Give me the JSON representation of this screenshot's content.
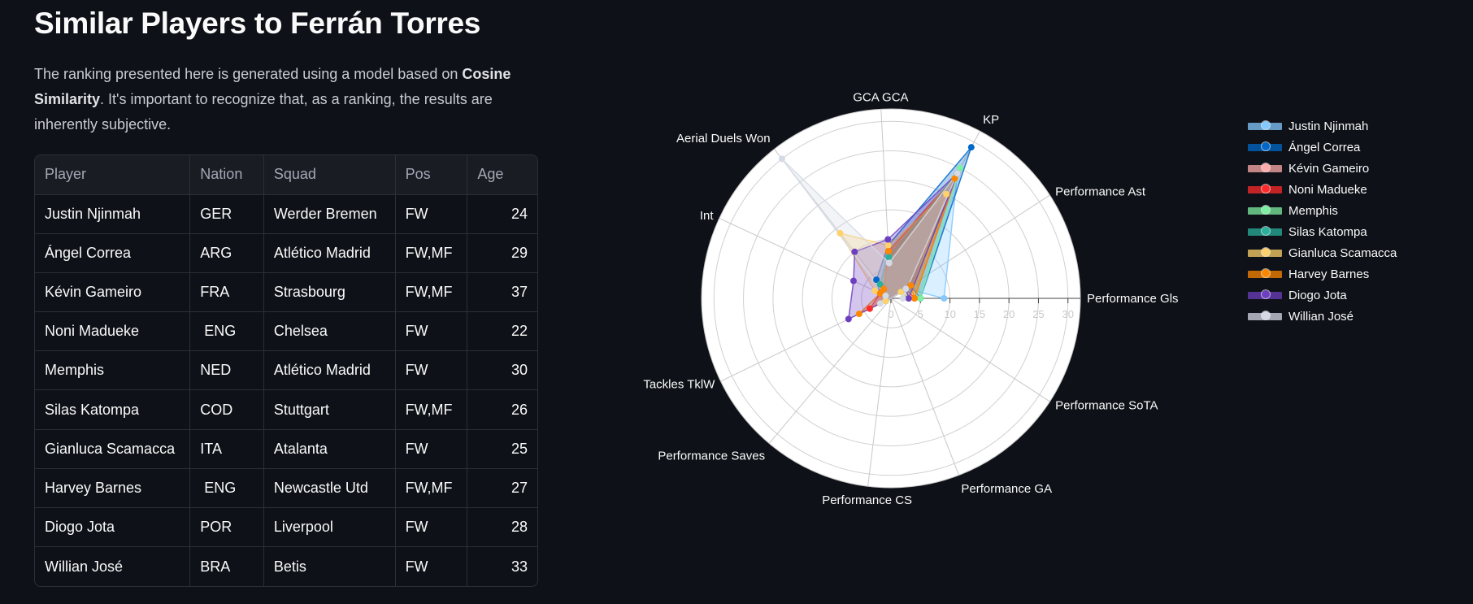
{
  "page": {
    "title": "Similar Players to Ferrán Torres",
    "intro_before": "The ranking presented here is generated using a model based on ",
    "intro_bold": "Cosine Similarity",
    "intro_after": ". It's important to recognize that, as a ranking, the results are inherently subjective."
  },
  "table": {
    "columns": [
      "Player",
      "Nation",
      "Squad",
      "Pos",
      "Age"
    ],
    "rows": [
      [
        "Justin Njinmah",
        "GER",
        "Werder Bremen",
        "FW",
        "24"
      ],
      [
        "Ángel Correa",
        "ARG",
        "Atlético Madrid",
        "FW,MF",
        "29"
      ],
      [
        "Kévin Gameiro",
        "FRA",
        "Strasbourg",
        "FW,MF",
        "37"
      ],
      [
        "Noni Madueke",
        " ENG",
        "Chelsea",
        "FW",
        "22"
      ],
      [
        "Memphis",
        "NED",
        "Atlético Madrid",
        "FW",
        "30"
      ],
      [
        "Silas Katompa",
        "COD",
        "Stuttgart",
        "FW,MF",
        "26"
      ],
      [
        "Gianluca Scamacca",
        "ITA",
        "Atalanta",
        "FW",
        "25"
      ],
      [
        "Harvey Barnes",
        " ENG",
        "Newcastle Utd",
        "FW,MF",
        "27"
      ],
      [
        "Diogo Jota",
        "POR",
        "Liverpool",
        "FW",
        "28"
      ],
      [
        "Willian José",
        "BRA",
        "Betis",
        "FW",
        "33"
      ]
    ]
  },
  "chart_data": {
    "type": "radar",
    "axes": [
      "Performance Gls",
      "KP",
      "GCA GCA",
      "Aerial Duels Won",
      "Int",
      "Tackles TklW",
      "Performance Saves",
      "Performance CS",
      "Performance GA",
      "Performance SoTA",
      "Performance Ast"
    ],
    "axis_angles_deg": [
      0,
      62,
      93,
      128,
      155,
      206,
      230,
      263,
      291,
      327,
      33
    ],
    "radial_ticks": [
      "0",
      "5",
      "10",
      "15",
      "20",
      "25",
      "30"
    ],
    "rmax": 31,
    "series": [
      {
        "name": "Justin Njinmah",
        "color": "#83c9ff",
        "values": [
          9,
          24,
          8,
          3,
          2,
          1,
          0,
          0,
          0,
          0,
          3
        ]
      },
      {
        "name": "Ángel Correa",
        "color": "#0068c9",
        "values": [
          5,
          29,
          9,
          4,
          2,
          1,
          0,
          0,
          0,
          0,
          4
        ]
      },
      {
        "name": "Kévin Gameiro",
        "color": "#ffabab",
        "values": [
          3,
          25,
          7,
          3,
          1,
          1,
          0,
          0,
          0,
          0,
          3
        ]
      },
      {
        "name": "Noni Madueke",
        "color": "#ff2b2b",
        "values": [
          4,
          24,
          8,
          2,
          2,
          4,
          0,
          0,
          0,
          0,
          3
        ]
      },
      {
        "name": "Memphis",
        "color": "#7defa1",
        "values": [
          5,
          25,
          7,
          3,
          1,
          1,
          0,
          0,
          0,
          0,
          3
        ]
      },
      {
        "name": "Silas Katompa",
        "color": "#29b09d",
        "values": [
          3,
          24,
          7,
          3,
          1,
          1,
          0,
          0,
          0,
          0,
          2
        ]
      },
      {
        "name": "Gianluca Scamacca",
        "color": "#ffd16a",
        "values": [
          3,
          20,
          9,
          14,
          3,
          1,
          0,
          0,
          0,
          0,
          2
        ]
      },
      {
        "name": "Harvey Barnes",
        "color": "#ff8700",
        "values": [
          4,
          23,
          8,
          2,
          2,
          6,
          0,
          0,
          0,
          0,
          4
        ]
      },
      {
        "name": "Diogo Jota",
        "color": "#6d3fc0",
        "values": [
          3,
          24,
          10,
          10,
          7,
          8,
          0,
          0,
          0,
          0,
          3
        ]
      },
      {
        "name": "Willian José",
        "color": "#d5dae5",
        "values": [
          2,
          24,
          6,
          30,
          1,
          2,
          0,
          0,
          0,
          0,
          3
        ]
      }
    ]
  }
}
